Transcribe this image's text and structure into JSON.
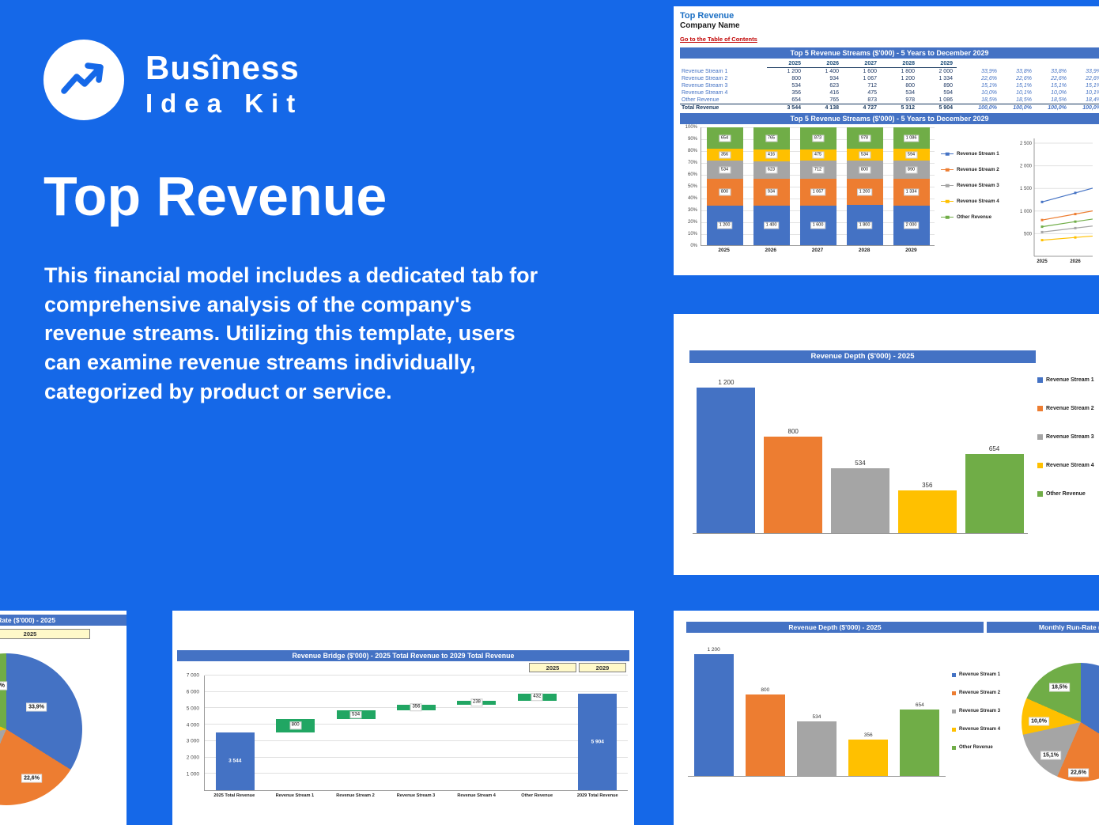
{
  "brand": {
    "line1": "Busîness",
    "line2": "Idea Kit"
  },
  "hero": {
    "title": "Top Revenue",
    "lines": [
      "This financial model includes a dedicated tab for",
      "comprehensive analysis of the company's",
      "revenue streams. Utilizing this template, users",
      "can examine revenue streams individually,",
      "categorized by product or service."
    ]
  },
  "colors": {
    "background": "#1568E8",
    "s1": "#4472C4",
    "s2": "#ED7D31",
    "s3": "#A5A5A5",
    "s4": "#FFC000",
    "s5": "#70AD47",
    "bridge": "#21A663",
    "headerBar": "#4472C4",
    "link": "#C00000",
    "cellYellow": "#FFF9C9"
  },
  "sheet": {
    "tab_title": "Top Revenue",
    "company": "Company Name",
    "toc_link": "Go to the Table of Contents",
    "table_title": "Top 5 Revenue Streams ($'000) - 5 Years to December 2029",
    "chart_title": "Top 5 Revenue Streams ($'000) - 5 Years to December 2029",
    "years": [
      "2025",
      "2026",
      "2027",
      "2028",
      "2029"
    ],
    "rows": [
      {
        "label": "Revenue Stream 1",
        "values": [
          "1 200",
          "1 400",
          "1 600",
          "1 800",
          "2 000"
        ],
        "pcts": [
          "33,9%",
          "33,8%",
          "33,8%",
          "33,9%",
          "33,9%"
        ]
      },
      {
        "label": "Revenue Stream 2",
        "values": [
          "800",
          "934",
          "1 067",
          "1 200",
          "1 334"
        ],
        "pcts": [
          "22,6%",
          "22,6%",
          "22,6%",
          "22,6%",
          "22,6%"
        ]
      },
      {
        "label": "Revenue Stream 3",
        "values": [
          "534",
          "623",
          "712",
          "800",
          "890"
        ],
        "pcts": [
          "15,1%",
          "15,1%",
          "15,1%",
          "15,1%",
          "15,1%"
        ]
      },
      {
        "label": "Revenue Stream 4",
        "values": [
          "356",
          "416",
          "475",
          "534",
          "594"
        ],
        "pcts": [
          "10,0%",
          "10,1%",
          "10,0%",
          "10,1%",
          "10,1%"
        ]
      },
      {
        "label": "Other Revenue",
        "values": [
          "654",
          "765",
          "873",
          "978",
          "1 086"
        ],
        "pcts": [
          "18,5%",
          "18,5%",
          "18,5%",
          "18,4%",
          "18,4%"
        ]
      }
    ],
    "total": {
      "label": "Total Revenue",
      "values": [
        "3 544",
        "4 138",
        "4 727",
        "5 312",
        "5 904"
      ],
      "pcts": [
        "100,0%",
        "100,0%",
        "100,0%",
        "100,0%",
        "100,0%"
      ]
    }
  },
  "depth": {
    "title": "Revenue Depth ($'000) - 2025"
  },
  "runrate": {
    "title": "Monthly Run-Rate ($'000) - 2025",
    "year_cell": "2025"
  },
  "bridge": {
    "title": "Revenue Bridge ($'000) - 2025 Total Revenue to 2029 Total Revenue",
    "year_cells": [
      "2025",
      "2029"
    ]
  },
  "chart_data": [
    {
      "id": "top5_stacked",
      "type": "bar",
      "stacked": true,
      "title": "Top 5 Revenue Streams ($'000) - 5 Years to December 2029",
      "categories": [
        "2025",
        "2026",
        "2027",
        "2028",
        "2029"
      ],
      "series": [
        {
          "name": "Revenue Stream 1",
          "color_key": "s1",
          "values": [
            1200,
            1400,
            1600,
            1800,
            2000
          ],
          "labels": [
            "1 200",
            "1 400",
            "1 600",
            "1 800",
            "2 000"
          ]
        },
        {
          "name": "Revenue Stream 2",
          "color_key": "s2",
          "values": [
            800,
            934,
            1067,
            1200,
            1334
          ],
          "labels": [
            "800",
            "934",
            "1 067",
            "1 200",
            "1 334"
          ]
        },
        {
          "name": "Revenue Stream 3",
          "color_key": "s3",
          "values": [
            534,
            623,
            712,
            800,
            890
          ],
          "labels": [
            "534",
            "623",
            "712",
            "800",
            "890"
          ]
        },
        {
          "name": "Revenue Stream 4",
          "color_key": "s4",
          "values": [
            356,
            416,
            475,
            534,
            594
          ],
          "labels": [
            "356",
            "416",
            "475",
            "534",
            "594"
          ]
        },
        {
          "name": "Other Revenue",
          "color_key": "s5",
          "values": [
            654,
            765,
            873,
            978,
            1086
          ],
          "labels": [
            "654",
            "765",
            "873",
            "978",
            "1 086"
          ]
        }
      ],
      "totals": [
        3544,
        4138,
        4727,
        5312,
        5904
      ],
      "y_ticks": [
        "100%",
        "90%",
        "80%",
        "70%",
        "60%",
        "50%",
        "40%",
        "30%",
        "20%",
        "10%",
        "0%"
      ],
      "legend_position": "right"
    },
    {
      "id": "revenue_depth_2025",
      "type": "bar",
      "title": "Revenue Depth ($'000) - 2025",
      "categories": [
        "Revenue Stream 1",
        "Revenue Stream 2",
        "Revenue Stream 3",
        "Revenue Stream 4",
        "Other Revenue"
      ],
      "values": [
        1200,
        800,
        534,
        356,
        654
      ],
      "labels": [
        "1 200",
        "800",
        "534",
        "356",
        "654"
      ],
      "color_keys": [
        "s1",
        "s2",
        "s3",
        "s4",
        "s5"
      ],
      "ymax": 1300,
      "legend_position": "right"
    },
    {
      "id": "revenue_bridge",
      "type": "waterfall",
      "title": "Revenue Bridge ($'000) - 2025 Total Revenue to 2029 Total Revenue",
      "categories": [
        "2025 Total Revenue",
        "Revenue Stream 1",
        "Revenue Stream 2",
        "Revenue Stream 3",
        "Revenue Stream 4",
        "Other Revenue",
        "2029 Total Revenue"
      ],
      "bars": [
        {
          "start": 0,
          "end": 3544,
          "label": "3 544",
          "kind": "total"
        },
        {
          "start": 3544,
          "end": 4344,
          "label": "800",
          "kind": "delta"
        },
        {
          "start": 4344,
          "end": 4878,
          "label": "534",
          "kind": "delta"
        },
        {
          "start": 4878,
          "end": 5234,
          "label": "356",
          "kind": "delta"
        },
        {
          "start": 5234,
          "end": 5472,
          "label": "238",
          "kind": "delta"
        },
        {
          "start": 5472,
          "end": 5904,
          "label": "432",
          "kind": "delta"
        },
        {
          "start": 0,
          "end": 5904,
          "label": "5 904",
          "kind": "total"
        }
      ],
      "y_ticks": [
        "7 000",
        "6 000",
        "5 000",
        "4 000",
        "3 000",
        "2 000",
        "1 000"
      ],
      "ymax": 7000
    },
    {
      "id": "monthly_run_rate_2025",
      "type": "pie",
      "title": "Monthly Run-Rate ($'000) - 2025",
      "slices": [
        {
          "name": "Revenue Stream 1",
          "pct": 33.9,
          "label": "33,9%",
          "color_key": "s1"
        },
        {
          "name": "Revenue Stream 2",
          "pct": 22.6,
          "label": "22,6%",
          "color_key": "s2"
        },
        {
          "name": "Revenue Stream 3",
          "pct": 15.1,
          "label": "15,1%",
          "color_key": "s3"
        },
        {
          "name": "Revenue Stream 4",
          "pct": 10.0,
          "label": "10,0%",
          "color_key": "s4"
        },
        {
          "name": "Other Revenue",
          "pct": 18.5,
          "label": "18,5%",
          "color_key": "s5"
        }
      ]
    },
    {
      "id": "streams_line_partial",
      "type": "line",
      "y_ticks": [
        "2 500",
        "2 000",
        "1 500",
        "1 000",
        "500"
      ],
      "x_ticks": [
        "2025",
        "2026"
      ]
    }
  ]
}
